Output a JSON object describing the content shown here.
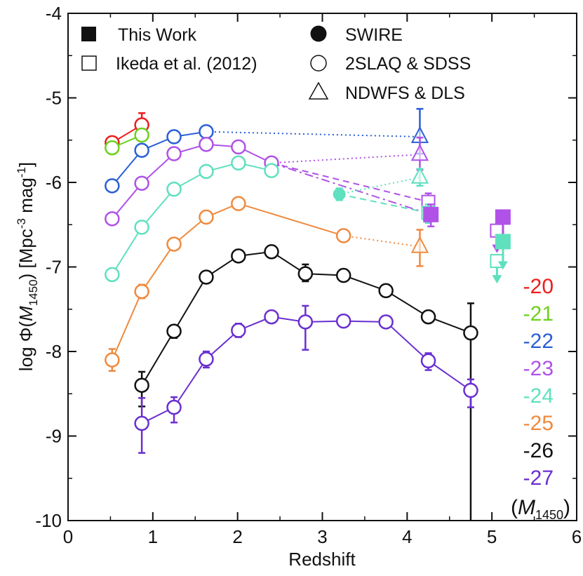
{
  "chart_data": {
    "type": "scatter",
    "title": "",
    "xlabel": "Redshift",
    "ylabel": "log Φ(M1450) [Mpc-3 mag-1]",
    "ylabel_parts": {
      "prefix": "log Φ(",
      "mag_symbol": "M",
      "mag_subscript": "1450",
      "mid": ") [Mpc",
      "exp1": "-3",
      "unit": " mag",
      "exp2": "-1",
      "suffix": "]"
    },
    "xlim": [
      0,
      6
    ],
    "ylim": [
      -10,
      -4
    ],
    "xticks": [
      0,
      1,
      2,
      3,
      4,
      5,
      6
    ],
    "xtick_labels": [
      "0",
      "1",
      "2",
      "3",
      "4",
      "5",
      "6"
    ],
    "yticks": [
      -10,
      -9,
      -8,
      -7,
      -6,
      -5,
      -4
    ],
    "ytick_labels": [
      "-10",
      "-9",
      "-8",
      "-7",
      "-6",
      "-5",
      "-4"
    ],
    "legend": [
      {
        "label": "This Work",
        "marker": "filled-square"
      },
      {
        "label": "Ikeda et al. (2012)",
        "marker": "open-square"
      },
      {
        "label": "SWIRE",
        "marker": "filled-circle"
      },
      {
        "label": "2SLAQ & SDSS",
        "marker": "open-circle"
      },
      {
        "label": "NDWFS & DLS",
        "marker": "open-triangle"
      }
    ],
    "magnitude_labels": {
      "items": [
        {
          "label": "-20",
          "color": "#ee1c1c"
        },
        {
          "label": "-21",
          "color": "#6cd11f"
        },
        {
          "label": "-22",
          "color": "#2a5fd6"
        },
        {
          "label": "-23",
          "color": "#b052e8"
        },
        {
          "label": "-24",
          "color": "#5fe0bf"
        },
        {
          "label": "-25",
          "color": "#ef8a3e"
        },
        {
          "label": "-26",
          "color": "#111111"
        },
        {
          "label": "-27",
          "color": "#6a2fd0"
        }
      ],
      "note_prefix": "(",
      "note_symbol": "M",
      "note_subscript": "1450",
      "note_suffix": ")"
    },
    "series": [
      {
        "name": "-20",
        "color": "#ee1c1c",
        "x": [
          0.52,
          0.87
        ],
        "y": [
          -5.53,
          -5.32
        ],
        "err": [
          0.04,
          0.14
        ]
      },
      {
        "name": "-21",
        "color": "#6cd11f",
        "x": [
          0.52,
          0.87
        ],
        "y": [
          -5.59,
          -5.44
        ],
        "err": [
          0.05,
          0.06
        ]
      },
      {
        "name": "-22",
        "color": "#2a5fd6",
        "x": [
          0.52,
          0.87,
          1.25,
          1.63
        ],
        "y": [
          -6.04,
          -5.62,
          -5.46,
          -5.4
        ],
        "err": [
          0.04,
          0.04,
          0.04,
          0.04
        ]
      },
      {
        "name": "-23",
        "color": "#b052e8",
        "x": [
          0.52,
          0.87,
          1.25,
          1.63,
          2.01,
          2.4
        ],
        "y": [
          -6.43,
          -6.01,
          -5.66,
          -5.55,
          -5.58,
          -5.77
        ],
        "err": [
          0.05,
          0.04,
          0.03,
          0.03,
          0.03,
          0.03
        ]
      },
      {
        "name": "-24",
        "color": "#5fe0bf",
        "x": [
          0.52,
          0.87,
          1.25,
          1.63,
          2.01,
          2.4
        ],
        "y": [
          -7.09,
          -6.53,
          -6.08,
          -5.87,
          -5.77,
          -5.86
        ],
        "err": [
          0.06,
          0.05,
          0.04,
          0.03,
          0.03,
          0.03
        ]
      },
      {
        "name": "-25",
        "color": "#ef8a3e",
        "x": [
          0.52,
          0.87,
          1.25,
          1.63,
          2.01,
          3.25
        ],
        "y": [
          -8.1,
          -7.29,
          -6.73,
          -6.41,
          -6.25,
          -6.63
        ],
        "err": [
          0.13,
          0.08,
          0.05,
          0.04,
          0.04,
          0.05
        ]
      },
      {
        "name": "-26",
        "color": "#111111",
        "x": [
          0.87,
          1.25,
          1.63,
          2.01,
          2.4,
          2.8,
          3.25,
          3.75,
          4.25,
          4.75
        ],
        "y": [
          -8.4,
          -7.76,
          -7.12,
          -6.87,
          -6.82,
          -7.08,
          -7.1,
          -7.28,
          -7.59,
          -7.78
        ],
        "err_low": [
          0.25,
          0.08,
          0.05,
          0.04,
          0.04,
          0.09,
          0.05,
          0.05,
          0.06,
          2.3
        ],
        "err_high": [
          0.16,
          0.07,
          0.05,
          0.04,
          0.04,
          0.11,
          0.05,
          0.05,
          0.06,
          0.35
        ]
      },
      {
        "name": "-27",
        "color": "#6a2fd0",
        "x": [
          0.87,
          1.25,
          1.63,
          2.01,
          2.4,
          2.8,
          3.25,
          3.75,
          4.25,
          4.75
        ],
        "y": [
          -8.85,
          -8.66,
          -8.09,
          -7.75,
          -7.59,
          -7.65,
          -7.64,
          -7.65,
          -8.11,
          -8.46
        ],
        "err_low": [
          0.35,
          0.18,
          0.1,
          0.08,
          0.06,
          0.33,
          0.05,
          0.05,
          0.11,
          0.2
        ],
        "err_high": [
          0.3,
          0.12,
          0.09,
          0.08,
          0.06,
          0.19,
          0.05,
          0.05,
          0.09,
          0.13
        ]
      }
    ],
    "swire": [
      {
        "color": "#5fe0bf",
        "x": 3.2,
        "y": -6.14,
        "err": 0.07
      }
    ],
    "ndwfs": [
      {
        "color": "#2a5fd6",
        "x": 4.15,
        "y": -5.46,
        "err_low": 0.2,
        "err_high": 0.33
      },
      {
        "color": "#b052e8",
        "x": 4.15,
        "y": -5.67,
        "err_low": 0.18,
        "err_high": 0.2
      },
      {
        "color": "#5fe0bf",
        "x": 4.15,
        "y": -5.94,
        "err_low": 0.1,
        "err_high": 0.1
      },
      {
        "color": "#ef8a3e",
        "x": 4.15,
        "y": -6.76,
        "err_low": 0.23,
        "err_high": 0.2
      }
    ],
    "ikeda_z4": [
      {
        "color": "#b052e8",
        "x": 4.25,
        "y": -6.23,
        "err_low": 0.12,
        "err_high": 0.1
      },
      {
        "color": "#5fe0bf",
        "x": 4.25,
        "y": -6.36,
        "err_low": 0.12,
        "err_high": 0.1
      }
    ],
    "this_work_z4": [
      {
        "color": "#b052e8",
        "x": 4.28,
        "y": -6.38,
        "err_low": 0.14,
        "err_high": 0.12
      }
    ],
    "ikeda_z5_limits": [
      {
        "color": "#b052e8",
        "x": 5.06,
        "y": -6.57
      },
      {
        "color": "#5fe0bf",
        "x": 5.06,
        "y": -6.93
      }
    ],
    "this_work_z5_limits": [
      {
        "color": "#b052e8",
        "x": 5.13,
        "y": -6.41
      },
      {
        "color": "#5fe0bf",
        "x": 5.13,
        "y": -6.7
      }
    ],
    "connectors": [
      {
        "color": "#2a5fd6",
        "style": "dotted",
        "from": [
          1.63,
          -5.4
        ],
        "to": [
          4.15,
          -5.46
        ]
      },
      {
        "color": "#b052e8",
        "style": "dotted",
        "from": [
          2.4,
          -5.77
        ],
        "to": [
          4.15,
          -5.67
        ]
      },
      {
        "color": "#b052e8",
        "style": "dashed",
        "from": [
          2.4,
          -5.77
        ],
        "to": [
          4.25,
          -6.23
        ]
      },
      {
        "color": "#b052e8",
        "style": "dashdot",
        "from": [
          2.4,
          -5.77
        ],
        "to": [
          4.28,
          -6.38
        ]
      },
      {
        "color": "#5fe0bf",
        "style": "dotted",
        "from": [
          3.2,
          -6.14
        ],
        "to": [
          4.15,
          -5.94
        ]
      },
      {
        "color": "#5fe0bf",
        "style": "dashed",
        "from": [
          3.2,
          -6.14
        ],
        "to": [
          4.25,
          -6.36
        ]
      },
      {
        "color": "#ef8a3e",
        "style": "dotted",
        "from": [
          3.25,
          -6.63
        ],
        "to": [
          4.15,
          -6.76
        ]
      }
    ]
  }
}
